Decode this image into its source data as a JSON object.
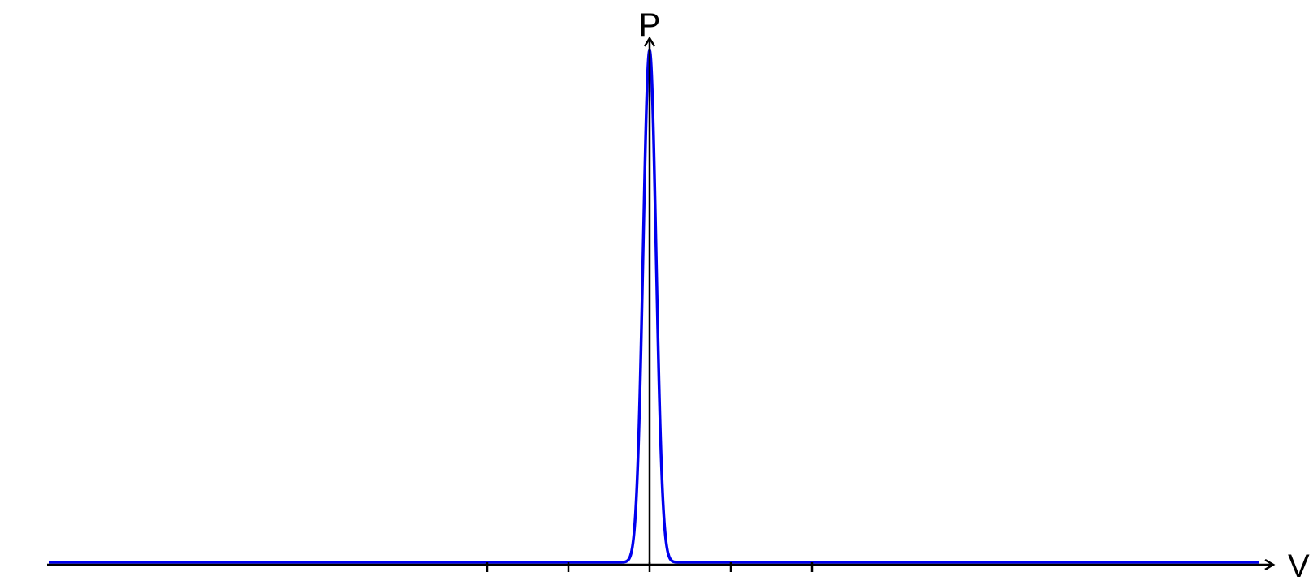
{
  "chart_data": {
    "type": "line",
    "title": "",
    "xlabel": "V",
    "ylabel": "P",
    "x_ticks": [
      -2,
      -1,
      0,
      1,
      2
    ],
    "xlim": [
      -7.4,
      7.5
    ],
    "ylim": [
      0,
      1.0
    ],
    "grid": false,
    "legend": "none",
    "axes_style": "arrows-through-origin",
    "series": [
      {
        "color": "#0000ee",
        "function": "gaussian",
        "peak": 1.0,
        "center": 0,
        "sigma": 0.08,
        "baseline": 0.0,
        "x": [
          -7.4,
          -2,
          -1,
          -0.5,
          -0.3,
          -0.25,
          -0.2,
          -0.15,
          -0.1,
          -0.05,
          0,
          0.05,
          0.1,
          0.15,
          0.2,
          0.25,
          0.3,
          0.5,
          1,
          2,
          7.4
        ],
        "y": [
          0,
          0,
          0,
          0,
          0.0009,
          0.0076,
          0.0439,
          0.1724,
          0.4578,
          0.8226,
          1.0,
          0.8226,
          0.4578,
          0.1724,
          0.0439,
          0.0076,
          0.0009,
          0,
          0,
          0,
          0
        ]
      }
    ]
  }
}
